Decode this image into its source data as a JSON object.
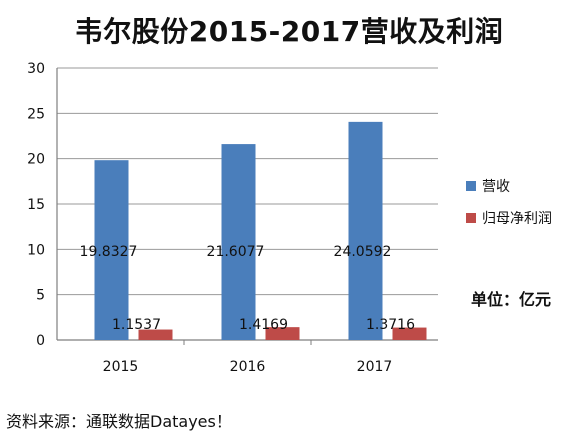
{
  "chart_data": {
    "type": "bar",
    "title": "韦尔股份2015-2017营收及利润",
    "categories": [
      "2015",
      "2016",
      "2017"
    ],
    "series": [
      {
        "name": "营收",
        "values": [
          19.8327,
          21.6077,
          24.0592
        ],
        "labels": [
          "19.8327",
          "21.6077",
          "24.0592"
        ],
        "color": "#4A7EBB"
      },
      {
        "name": "归母净利润",
        "values": [
          1.1537,
          1.4169,
          1.3716
        ],
        "labels": [
          "1.1537",
          "1.4169",
          "1.3716"
        ],
        "color": "#BE4B48"
      }
    ],
    "ylim": [
      0,
      30
    ],
    "yticks": [
      "0",
      "5",
      "10",
      "15",
      "20",
      "25",
      "30"
    ],
    "grid": true,
    "legend": "right"
  },
  "unit_label": "单位：亿元",
  "source_label": "资料来源：通联数据Datayes！"
}
